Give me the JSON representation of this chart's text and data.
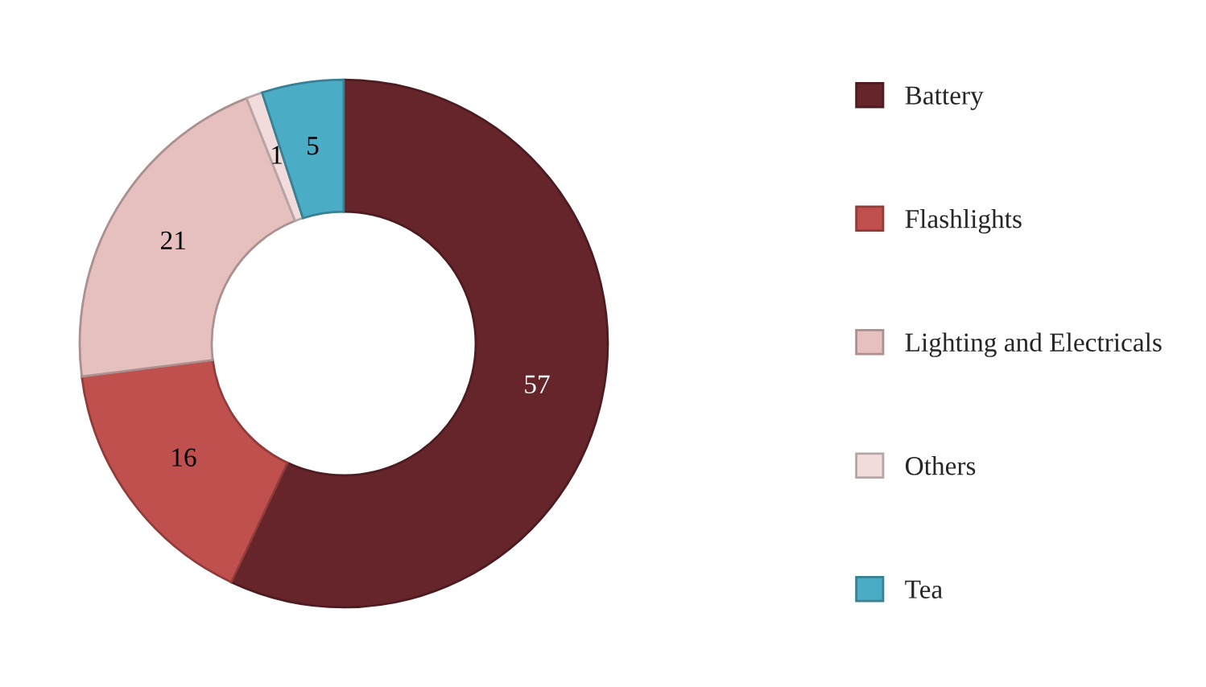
{
  "chart_data": {
    "type": "donut",
    "categories": [
      "Battery",
      "Flashlights",
      "Lighting and Electricals",
      "Others",
      "Tea"
    ],
    "values": [
      57,
      16,
      21,
      1,
      5
    ],
    "colors": [
      "#65252a",
      "#c0504d",
      "#e6c0bf",
      "#f2dcdb",
      "#4bacc6"
    ],
    "data_labels": true,
    "legend": "right"
  }
}
